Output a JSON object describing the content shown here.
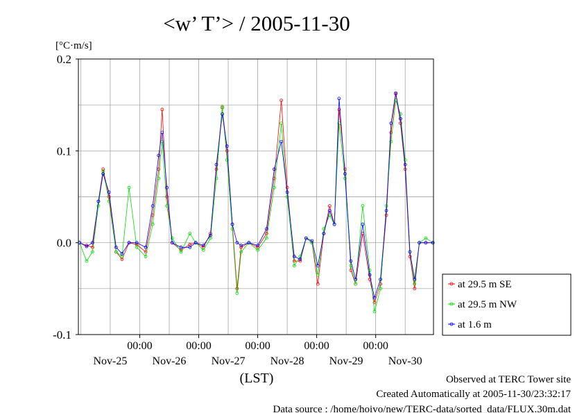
{
  "chart_data": {
    "type": "line",
    "title": "<w’ T’> / 2005-11-30",
    "ylabel": "[°C·m/s]",
    "xlabel": "(LST)",
    "ylim": [
      -0.1,
      0.2
    ],
    "y_ticks": [
      "0.2",
      "0.1",
      "0.0",
      "-0.1"
    ],
    "x_ticks": [
      {
        "day": 26,
        "time_label": "00:00"
      },
      {
        "day": 27,
        "time_label": "00:00"
      },
      {
        "day": 28,
        "time_label": "00:00"
      },
      {
        "day": 29,
        "time_label": "00:00"
      },
      {
        "day": 30,
        "time_label": "00:00"
      }
    ],
    "day_labels": [
      {
        "day": 25.5,
        "label": "Nov-25"
      },
      {
        "day": 26.5,
        "label": "Nov-26"
      },
      {
        "day": 27.5,
        "label": "Nov-27"
      },
      {
        "day": 28.5,
        "label": "Nov-28"
      },
      {
        "day": 29.5,
        "label": "Nov-29"
      },
      {
        "day": 30.5,
        "label": "Nov-30"
      }
    ],
    "xlim_day": [
      24.96,
      30.98
    ],
    "x_unit": "day of November 2005 (LST)",
    "grid": true,
    "legend_position": "lower-right outside",
    "series": [
      {
        "name": "at 29.5 m SE",
        "color": "#ff0000",
        "points": [
          [
            24.98,
            0.0
          ],
          [
            25.1,
            -0.003
          ],
          [
            25.2,
            -0.005
          ],
          [
            25.3,
            0.045
          ],
          [
            25.38,
            0.08
          ],
          [
            25.48,
            0.05
          ],
          [
            25.6,
            -0.01
          ],
          [
            25.7,
            -0.018
          ],
          [
            25.82,
            0.0
          ],
          [
            25.95,
            -0.002
          ],
          [
            26.1,
            -0.01
          ],
          [
            26.22,
            0.03
          ],
          [
            26.32,
            0.08
          ],
          [
            26.38,
            0.145
          ],
          [
            26.46,
            0.05
          ],
          [
            26.55,
            0.0
          ],
          [
            26.7,
            -0.008
          ],
          [
            26.85,
            -0.002
          ],
          [
            26.95,
            0.0
          ],
          [
            27.08,
            -0.005
          ],
          [
            27.2,
            0.01
          ],
          [
            27.3,
            0.08
          ],
          [
            27.4,
            0.147
          ],
          [
            27.48,
            0.1
          ],
          [
            27.57,
            0.02
          ],
          [
            27.65,
            -0.05
          ],
          [
            27.72,
            -0.005
          ],
          [
            27.85,
            0.0
          ],
          [
            28.0,
            -0.005
          ],
          [
            28.15,
            0.01
          ],
          [
            28.28,
            0.07
          ],
          [
            28.4,
            0.155
          ],
          [
            28.5,
            0.06
          ],
          [
            28.62,
            -0.02
          ],
          [
            28.72,
            -0.02
          ],
          [
            28.82,
            0.005
          ],
          [
            28.92,
            0.0
          ],
          [
            29.02,
            -0.045
          ],
          [
            29.12,
            0.01
          ],
          [
            29.22,
            0.04
          ],
          [
            29.3,
            0.02
          ],
          [
            29.38,
            0.145
          ],
          [
            29.48,
            0.08
          ],
          [
            29.58,
            -0.03
          ],
          [
            29.66,
            -0.045
          ],
          [
            29.78,
            0.01
          ],
          [
            29.9,
            -0.04
          ],
          [
            29.98,
            -0.065
          ],
          [
            30.08,
            -0.045
          ],
          [
            30.18,
            0.03
          ],
          [
            30.26,
            0.12
          ],
          [
            30.34,
            0.162
          ],
          [
            30.42,
            0.13
          ],
          [
            30.5,
            0.08
          ],
          [
            30.58,
            -0.015
          ],
          [
            30.66,
            -0.05
          ],
          [
            30.74,
            0.0
          ],
          [
            30.85,
            0.0
          ],
          [
            30.97,
            0.0
          ]
        ]
      },
      {
        "name": "at 29.5 m NW",
        "color": "#00dd00",
        "points": [
          [
            24.98,
            0.0
          ],
          [
            25.1,
            -0.02
          ],
          [
            25.2,
            -0.01
          ],
          [
            25.3,
            0.04
          ],
          [
            25.38,
            0.078
          ],
          [
            25.48,
            0.045
          ],
          [
            25.6,
            -0.01
          ],
          [
            25.7,
            -0.015
          ],
          [
            25.82,
            0.06
          ],
          [
            25.95,
            -0.005
          ],
          [
            26.1,
            -0.015
          ],
          [
            26.22,
            0.02
          ],
          [
            26.32,
            0.07
          ],
          [
            26.38,
            0.11
          ],
          [
            26.46,
            0.04
          ],
          [
            26.55,
            0.005
          ],
          [
            26.7,
            -0.01
          ],
          [
            26.85,
            0.01
          ],
          [
            26.95,
            0.0
          ],
          [
            27.08,
            -0.008
          ],
          [
            27.2,
            0.005
          ],
          [
            27.3,
            0.07
          ],
          [
            27.4,
            0.148
          ],
          [
            27.48,
            0.09
          ],
          [
            27.57,
            0.015
          ],
          [
            27.65,
            -0.055
          ],
          [
            27.72,
            -0.01
          ],
          [
            27.85,
            0.0
          ],
          [
            28.0,
            -0.008
          ],
          [
            28.15,
            0.005
          ],
          [
            28.28,
            0.06
          ],
          [
            28.4,
            0.13
          ],
          [
            28.5,
            0.05
          ],
          [
            28.62,
            -0.025
          ],
          [
            28.72,
            -0.015
          ],
          [
            28.82,
            0.005
          ],
          [
            28.92,
            0.0
          ],
          [
            29.02,
            -0.035
          ],
          [
            29.12,
            0.015
          ],
          [
            29.22,
            0.03
          ],
          [
            29.3,
            0.02
          ],
          [
            29.38,
            0.13
          ],
          [
            29.48,
            0.07
          ],
          [
            29.58,
            -0.025
          ],
          [
            29.66,
            -0.045
          ],
          [
            29.78,
            0.04
          ],
          [
            29.9,
            -0.03
          ],
          [
            29.98,
            -0.075
          ],
          [
            30.08,
            -0.05
          ],
          [
            30.18,
            0.04
          ],
          [
            30.26,
            0.11
          ],
          [
            30.34,
            0.155
          ],
          [
            30.42,
            0.14
          ],
          [
            30.5,
            0.09
          ],
          [
            30.58,
            -0.01
          ],
          [
            30.66,
            -0.045
          ],
          [
            30.74,
            0.0
          ],
          [
            30.85,
            0.005
          ],
          [
            30.97,
            0.0
          ]
        ]
      },
      {
        "name": "at 1.6 m",
        "color": "#0000ff",
        "points": [
          [
            24.98,
            0.0
          ],
          [
            25.1,
            -0.004
          ],
          [
            25.2,
            0.0
          ],
          [
            25.3,
            0.045
          ],
          [
            25.38,
            0.075
          ],
          [
            25.48,
            0.055
          ],
          [
            25.6,
            -0.005
          ],
          [
            25.7,
            -0.012
          ],
          [
            25.82,
            0.0
          ],
          [
            25.95,
            0.0
          ],
          [
            26.1,
            -0.005
          ],
          [
            26.22,
            0.04
          ],
          [
            26.32,
            0.095
          ],
          [
            26.38,
            0.12
          ],
          [
            26.46,
            0.06
          ],
          [
            26.55,
            0.0
          ],
          [
            26.7,
            -0.005
          ],
          [
            26.85,
            -0.005
          ],
          [
            26.95,
            0.0
          ],
          [
            27.08,
            -0.003
          ],
          [
            27.2,
            0.008
          ],
          [
            27.3,
            0.085
          ],
          [
            27.4,
            0.14
          ],
          [
            27.48,
            0.105
          ],
          [
            27.57,
            0.02
          ],
          [
            27.65,
            0.0
          ],
          [
            27.72,
            -0.003
          ],
          [
            27.85,
            0.0
          ],
          [
            28.0,
            -0.003
          ],
          [
            28.15,
            0.015
          ],
          [
            28.28,
            0.08
          ],
          [
            28.4,
            0.11
          ],
          [
            28.5,
            0.055
          ],
          [
            28.62,
            -0.015
          ],
          [
            28.72,
            -0.018
          ],
          [
            28.82,
            0.005
          ],
          [
            28.92,
            0.002
          ],
          [
            29.02,
            -0.025
          ],
          [
            29.12,
            0.01
          ],
          [
            29.22,
            0.035
          ],
          [
            29.3,
            0.02
          ],
          [
            29.38,
            0.157
          ],
          [
            29.48,
            0.075
          ],
          [
            29.58,
            -0.02
          ],
          [
            29.66,
            -0.04
          ],
          [
            29.78,
            0.02
          ],
          [
            29.9,
            -0.035
          ],
          [
            29.98,
            -0.06
          ],
          [
            30.08,
            -0.04
          ],
          [
            30.18,
            0.035
          ],
          [
            30.26,
            0.13
          ],
          [
            30.34,
            0.163
          ],
          [
            30.42,
            0.135
          ],
          [
            30.5,
            0.085
          ],
          [
            30.58,
            -0.01
          ],
          [
            30.66,
            -0.04
          ],
          [
            30.74,
            0.0
          ],
          [
            30.85,
            0.0
          ],
          [
            30.97,
            0.0
          ]
        ]
      }
    ]
  },
  "footer": {
    "line1": "Observed at TERC Tower site",
    "line2": "Created Automatically at 2005-11-30/23:32:17",
    "line3": "Data source : /home/hoivo/new/TERC-data/sorted_data/FLUX.30m.dat"
  }
}
